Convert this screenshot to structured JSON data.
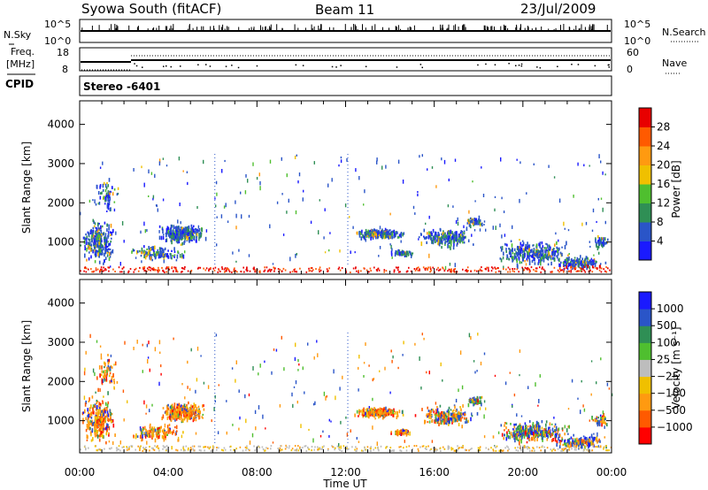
{
  "header": {
    "station": "Syowa South (fitACF)",
    "beam": "Beam 11",
    "date": "23/Jul/2009"
  },
  "left_labels": {
    "nsky": "N.Sky",
    "freq": "Freq.",
    "freq_unit": "[MHz]",
    "cpid": "CPID"
  },
  "right_labels": {
    "nsearch": "N.Search",
    "nave": "Nave"
  },
  "noise_panel": {
    "left_ticks": [
      "10^5",
      "10^0"
    ],
    "right_ticks": [
      "10^5",
      "10^0"
    ]
  },
  "freq_panel": {
    "left_ticks": [
      "18",
      "8"
    ],
    "right_ticks": [
      "60",
      "0"
    ]
  },
  "cpid_text": "Stereo -6401",
  "colors": {
    "power_scale": [
      "#1a1aff",
      "#2a55c8",
      "#2f8f55",
      "#4fbf2f",
      "#f0c000",
      "#ff9a10",
      "#ff5a00",
      "#e80000"
    ],
    "velocity_scale": [
      "#ff0000",
      "#ff5a00",
      "#ff9a10",
      "#f0c000",
      "#bdbdbd",
      "#4fbf2f",
      "#2f8f55",
      "#2a55c8",
      "#1a1aff"
    ]
  },
  "chart_data": [
    {
      "type": "heatmap",
      "name": "power",
      "ylabel": "Slant Range [km]",
      "yticks": [
        "1000",
        "2000",
        "3000",
        "4000"
      ],
      "ylim": [
        180,
        4600
      ],
      "xlim_hours": [
        0,
        24
      ],
      "colorbar_label": "Power [dB]",
      "colorbar_ticks": [
        "4",
        "8",
        "12",
        "16",
        "20",
        "24",
        "28"
      ],
      "colorbar_range": [
        0,
        30
      ]
    },
    {
      "type": "heatmap",
      "name": "velocity",
      "ylabel": "Slant Range [km]",
      "yticks": [
        "1000",
        "2000",
        "3000",
        "4000"
      ],
      "ylim": [
        180,
        4600
      ],
      "xlim_hours": [
        0,
        24
      ],
      "colorbar_label": "Velocity [m s⁻¹]",
      "colorbar_ticks": [
        "1000",
        "500",
        "100",
        "25",
        "−25",
        "−100",
        "−500",
        "−1000"
      ]
    }
  ],
  "xaxis": {
    "label": "Time UT",
    "ticks": [
      "00:00",
      "04:00",
      "08:00",
      "12:00",
      "16:00",
      "20:00",
      "00:00"
    ],
    "tick_hours": [
      0,
      4,
      8,
      12,
      16,
      20,
      24
    ]
  }
}
